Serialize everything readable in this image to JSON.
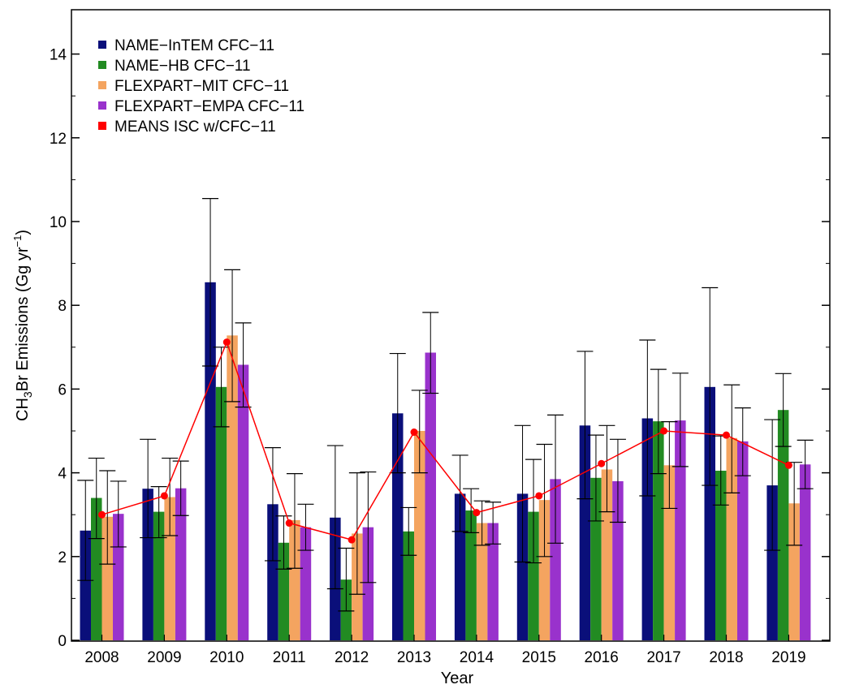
{
  "chart_data": {
    "type": "bar",
    "xlabel": "Year",
    "ylabel_parts": [
      "CH",
      "3",
      "Br Emissions (Gg yr",
      "−1",
      ")"
    ],
    "ylim": [
      0,
      15
    ],
    "yticks": [
      0,
      2,
      4,
      6,
      8,
      10,
      12,
      14
    ],
    "ytick_labels": [
      "0",
      "2",
      "4",
      "6",
      "8",
      "10",
      "12",
      "14"
    ],
    "categories": [
      "2008",
      "2009",
      "2010",
      "2011",
      "2012",
      "2013",
      "2014",
      "2015",
      "2016",
      "2017",
      "2018",
      "2019"
    ],
    "grid": false,
    "legend_placement": "top-left",
    "series": [
      {
        "name": "NAME−InTEM CFC−11",
        "color": "#0a0f7a",
        "values": [
          2.62,
          3.62,
          8.55,
          3.25,
          2.93,
          5.42,
          3.5,
          3.5,
          5.13,
          5.3,
          6.05,
          3.7
        ],
        "err_low": [
          1.43,
          2.45,
          6.55,
          1.9,
          1.23,
          4.0,
          2.6,
          1.87,
          3.38,
          3.45,
          3.7,
          2.15
        ],
        "err_high": [
          3.82,
          4.8,
          10.55,
          4.6,
          4.65,
          6.85,
          4.42,
          5.13,
          6.9,
          7.17,
          8.42,
          5.27
        ]
      },
      {
        "name": "NAME−HB CFC−11",
        "color": "#228b22",
        "values": [
          3.4,
          3.07,
          6.05,
          2.33,
          1.45,
          2.6,
          3.1,
          3.07,
          3.88,
          5.23,
          4.05,
          5.5
        ],
        "err_low": [
          2.43,
          2.45,
          5.1,
          1.7,
          0.7,
          2.03,
          2.57,
          1.85,
          2.85,
          3.98,
          3.23,
          4.63
        ],
        "err_high": [
          4.35,
          3.67,
          7.0,
          2.97,
          2.2,
          3.17,
          3.62,
          4.32,
          4.9,
          6.47,
          4.88,
          6.37
        ]
      },
      {
        "name": "FLEXPART−MIT CFC−11",
        "color": "#f4a460",
        "values": [
          2.95,
          3.42,
          7.28,
          2.87,
          2.55,
          5.0,
          2.8,
          3.35,
          4.08,
          4.18,
          4.83,
          3.27
        ],
        "err_low": [
          1.82,
          2.5,
          5.7,
          1.72,
          1.1,
          4.0,
          2.27,
          2.0,
          3.07,
          3.15,
          3.52,
          2.27
        ],
        "err_high": [
          4.05,
          4.35,
          8.85,
          3.98,
          4.0,
          5.97,
          3.33,
          4.68,
          5.13,
          5.22,
          6.1,
          4.25
        ]
      },
      {
        "name": "FLEXPART−EMPA CFC−11",
        "color": "#9932cc",
        "values": [
          3.02,
          3.63,
          6.58,
          2.7,
          2.7,
          6.87,
          2.8,
          3.85,
          3.8,
          5.25,
          4.75,
          4.2
        ],
        "err_low": [
          2.23,
          2.98,
          5.57,
          2.15,
          1.38,
          5.9,
          2.3,
          2.32,
          2.82,
          4.15,
          3.93,
          3.62
        ],
        "err_high": [
          3.8,
          4.28,
          7.58,
          3.25,
          4.02,
          7.83,
          3.3,
          5.38,
          4.8,
          6.38,
          5.55,
          4.78
        ]
      }
    ],
    "line_series": {
      "name": "MEANS ISC w/CFC−11",
      "color": "#ff0000",
      "values": [
        3.0,
        3.45,
        7.12,
        2.8,
        2.4,
        4.97,
        3.05,
        3.45,
        4.22,
        5.0,
        4.9,
        4.18
      ]
    }
  }
}
